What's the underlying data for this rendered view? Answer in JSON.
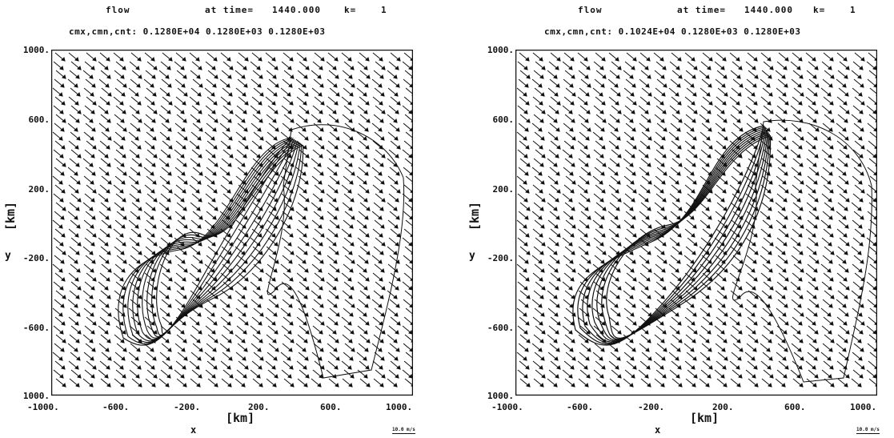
{
  "panels": [
    {
      "title_field": "flow",
      "title_time_label": "at time=",
      "title_time": "1440.000",
      "title_k_label": "k=",
      "title_k": "1",
      "subtitle": "cmx,cmn,cnt: 0.1280E+04 0.1280E+03 0.1280E+03",
      "y_ticks": [
        "1000.",
        "600.",
        "200.",
        "-200.",
        "-600.",
        "1000."
      ],
      "x_ticks": [
        "-1000.",
        "-600.",
        "-200.",
        "200.",
        "600.",
        "1000."
      ],
      "axis_unit": "[km]",
      "x_name": "x",
      "y_name": "y",
      "scale_label": "10.0 m/s"
    },
    {
      "title_field": "flow",
      "title_time_label": "at time=",
      "title_time": "1440.000",
      "title_k_label": "k=",
      "title_k": "1",
      "subtitle": "cmx,cmn,cnt: 0.1024E+04 0.1280E+03 0.1280E+03",
      "y_ticks": [
        "1000.",
        "600.",
        "200.",
        "-200.",
        "-600.",
        "1000."
      ],
      "x_ticks": [
        "-1000.",
        "-600.",
        "-200.",
        "200.",
        "600.",
        "1000."
      ],
      "axis_unit": "[km]",
      "x_name": "x",
      "y_name": "y",
      "scale_label": "10.0 m/s"
    }
  ],
  "colors": {
    "ink": "#111111",
    "background": "#ffffff"
  }
}
